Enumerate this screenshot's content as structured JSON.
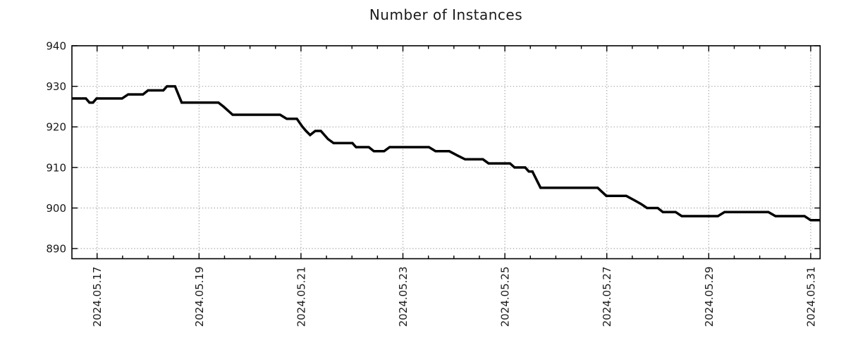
{
  "chart_data": {
    "type": "line",
    "title": "Number of Instances",
    "xlabel": "",
    "ylabel": "",
    "legend": "none",
    "grid": "dotted gridlines at labeled ticks",
    "line_color": "#000000",
    "grid_color": "#9e9e9e",
    "frame_color": "#000000",
    "x_unit": "days (0 = 2024.05.16 00:00)",
    "x_range": [
      0.506,
      15.185
    ],
    "y_range": [
      887.5,
      940
    ],
    "y_ticks": [
      890,
      900,
      910,
      920,
      930,
      940
    ],
    "x_ticks_major": [
      {
        "t": 1,
        "label": "2024.05.17"
      },
      {
        "t": 3,
        "label": "2024.05.19"
      },
      {
        "t": 5,
        "label": "2024.05.21"
      },
      {
        "t": 7,
        "label": "2024.05.23"
      },
      {
        "t": 9,
        "label": "2024.05.25"
      },
      {
        "t": 11,
        "label": "2024.05.27"
      },
      {
        "t": 13,
        "label": "2024.05.29"
      },
      {
        "t": 15,
        "label": "2024.05.31"
      }
    ],
    "x_minor_interval": 0.5,
    "points": [
      [
        0.51,
        927
      ],
      [
        0.78,
        927
      ],
      [
        0.85,
        926
      ],
      [
        0.92,
        926
      ],
      [
        0.99,
        927
      ],
      [
        1.49,
        927
      ],
      [
        1.61,
        928
      ],
      [
        1.9,
        928
      ],
      [
        2.0,
        929
      ],
      [
        2.3,
        929
      ],
      [
        2.37,
        930
      ],
      [
        2.53,
        930
      ],
      [
        2.66,
        926
      ],
      [
        3.38,
        926
      ],
      [
        3.48,
        925
      ],
      [
        3.57,
        924
      ],
      [
        3.66,
        923
      ],
      [
        4.59,
        923
      ],
      [
        4.72,
        922
      ],
      [
        4.92,
        922
      ],
      [
        5.03,
        920
      ],
      [
        5.1,
        919
      ],
      [
        5.18,
        918
      ],
      [
        5.28,
        919
      ],
      [
        5.39,
        919
      ],
      [
        5.53,
        917
      ],
      [
        5.64,
        916
      ],
      [
        6.01,
        916
      ],
      [
        6.08,
        915
      ],
      [
        6.33,
        915
      ],
      [
        6.43,
        914
      ],
      [
        6.63,
        914
      ],
      [
        6.74,
        915
      ],
      [
        7.51,
        915
      ],
      [
        7.64,
        914
      ],
      [
        7.91,
        914
      ],
      [
        8.06,
        913
      ],
      [
        8.22,
        912
      ],
      [
        8.57,
        912
      ],
      [
        8.68,
        911
      ],
      [
        9.1,
        911
      ],
      [
        9.19,
        910
      ],
      [
        9.4,
        910
      ],
      [
        9.47,
        909
      ],
      [
        9.54,
        909
      ],
      [
        9.7,
        905
      ],
      [
        10.82,
        905
      ],
      [
        10.99,
        903
      ],
      [
        11.38,
        903
      ],
      [
        11.53,
        902
      ],
      [
        11.67,
        901
      ],
      [
        11.79,
        900
      ],
      [
        12.0,
        900
      ],
      [
        12.1,
        899
      ],
      [
        12.35,
        899
      ],
      [
        12.47,
        898
      ],
      [
        13.18,
        898
      ],
      [
        13.31,
        899
      ],
      [
        14.17,
        899
      ],
      [
        14.31,
        898
      ],
      [
        14.88,
        898
      ],
      [
        15.0,
        897
      ],
      [
        15.19,
        897
      ]
    ]
  }
}
